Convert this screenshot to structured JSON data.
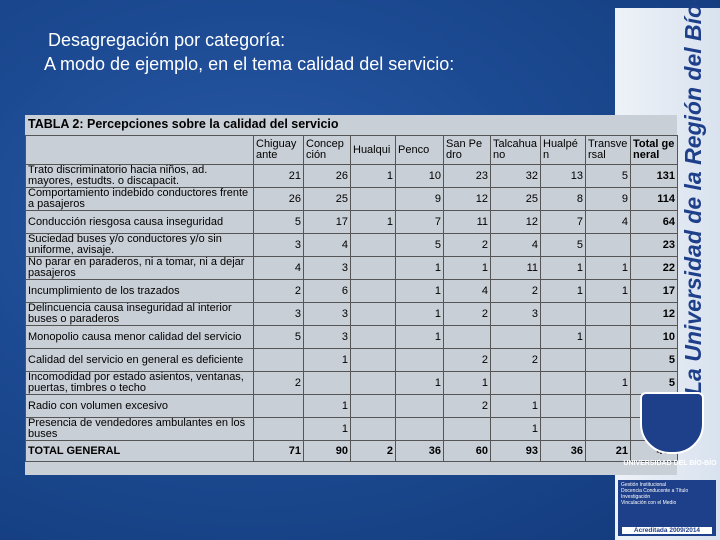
{
  "slide": {
    "title": "Desagregación por categoría:",
    "subtitle": "A modo de ejemplo, en el tema calidad del servicio:",
    "side_text": "La Universidad de la Región del Bío-Bío",
    "logo_text": "UNIVERSIDAD DEL BÍO-BÍO",
    "badge": {
      "items": [
        "Gestión Institucional",
        "Docencia Conducente a Título",
        "Investigación",
        "Vinculación con el Medio"
      ],
      "accreditation": "Acreditada 2009/2014"
    }
  },
  "table": {
    "caption": "TABLA 2: Percepciones sobre la calidad del servicio",
    "columns": [
      "Chiguayante",
      "Concepción",
      "Hualqui",
      "Penco",
      "San Pedro",
      "Talcahuano",
      "Hualpén",
      "Transversal",
      "Total general"
    ],
    "rows": [
      {
        "label": "Trato discriminatorio hacia niños, ad. mayores, estudts. o discapacit.",
        "values": [
          21,
          26,
          1,
          10,
          23,
          32,
          13,
          5,
          131
        ]
      },
      {
        "label": "Comportamiento indebido conductores frente a pasajeros",
        "values": [
          26,
          25,
          null,
          9,
          12,
          25,
          8,
          9,
          114
        ]
      },
      {
        "label": "Conducción riesgosa causa inseguridad",
        "values": [
          5,
          17,
          1,
          7,
          11,
          12,
          7,
          4,
          64
        ]
      },
      {
        "label": "Suciedad buses y/o conductores y/o sin uniforme, avisaje.",
        "values": [
          3,
          4,
          null,
          5,
          2,
          4,
          5,
          null,
          23
        ]
      },
      {
        "label": "No parar en paraderos, ni a tomar, ni a dejar pasajeros",
        "values": [
          4,
          3,
          null,
          1,
          1,
          11,
          1,
          1,
          22
        ]
      },
      {
        "label": "Incumplimiento de los trazados",
        "values": [
          2,
          6,
          null,
          1,
          4,
          2,
          1,
          1,
          17
        ]
      },
      {
        "label": "Delincuencia causa inseguridad al interior buses o paraderos",
        "values": [
          3,
          3,
          null,
          1,
          2,
          3,
          null,
          null,
          12
        ]
      },
      {
        "label": "Monopolio causa menor calidad del servicio",
        "values": [
          5,
          3,
          null,
          1,
          null,
          null,
          1,
          null,
          10
        ]
      },
      {
        "label": "Calidad del servicio en general es deficiente",
        "values": [
          null,
          1,
          null,
          null,
          2,
          2,
          null,
          null,
          5
        ]
      },
      {
        "label": "Incomodidad por estado asientos, ventanas, puertas, timbres o techo",
        "values": [
          2,
          null,
          null,
          1,
          1,
          null,
          null,
          1,
          5
        ]
      },
      {
        "label": "Radio con volumen excesivo",
        "values": [
          null,
          1,
          null,
          null,
          2,
          1,
          null,
          null,
          null
        ]
      },
      {
        "label": "Presencia de vendedores ambulantes en los buses",
        "values": [
          null,
          1,
          null,
          null,
          null,
          1,
          null,
          null,
          null
        ]
      }
    ],
    "total": {
      "label": "TOTAL GENERAL",
      "values": [
        71,
        90,
        2,
        36,
        60,
        93,
        36,
        21,
        409
      ]
    }
  }
}
